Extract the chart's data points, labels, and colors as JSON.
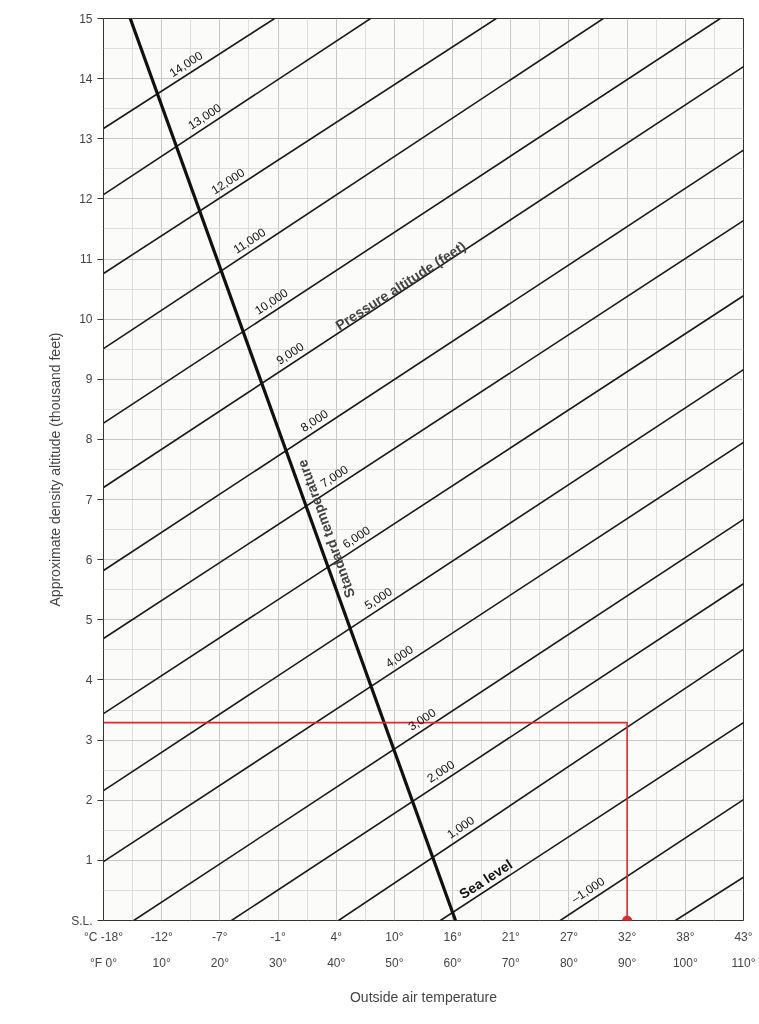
{
  "chart_data": {
    "type": "line",
    "xlabel": "Outside air temperature",
    "ylabel": "Approximate density altitude (thousand feet)",
    "xlim": [
      0,
      110
    ],
    "ylim": [
      0,
      15
    ],
    "xticks": [
      {
        "value": 0,
        "label": "°F 0°"
      },
      {
        "value": 10,
        "label": "10°"
      },
      {
        "value": 20,
        "label": "20°"
      },
      {
        "value": 30,
        "label": "30°"
      },
      {
        "value": 40,
        "label": "40°"
      },
      {
        "value": 50,
        "label": "50°"
      },
      {
        "value": 60,
        "label": "60°"
      },
      {
        "value": 70,
        "label": "70°"
      },
      {
        "value": 80,
        "label": "80°"
      },
      {
        "value": 90,
        "label": "90°"
      },
      {
        "value": 100,
        "label": "100°"
      },
      {
        "value": 110,
        "label": "110°"
      }
    ],
    "x2lim": [
      -17.78,
      43.33
    ],
    "x2ticks": [
      {
        "value": -17.78,
        "label": "°C -18°"
      },
      {
        "value": -12.22,
        "label": "-12°"
      },
      {
        "value": -6.67,
        "label": "-7°"
      },
      {
        "value": -1.11,
        "label": "-1°"
      },
      {
        "value": 4.44,
        "label": "4°"
      },
      {
        "value": 10,
        "label": "10°"
      },
      {
        "value": 15.56,
        "label": "16°"
      },
      {
        "value": 21.11,
        "label": "21°"
      },
      {
        "value": 26.67,
        "label": "27°"
      },
      {
        "value": 32.22,
        "label": "32°"
      },
      {
        "value": 37.78,
        "label": "38°"
      },
      {
        "value": 43.33,
        "label": "43°"
      }
    ],
    "yticks": [
      {
        "value": 0,
        "label": "S.L."
      },
      1,
      2,
      3,
      4,
      5,
      6,
      7,
      8,
      9,
      10,
      11,
      12,
      13,
      14,
      15
    ],
    "grid": true,
    "line_style": "solid",
    "series": [
      {
        "name": "14,000",
        "color": "#1a1a1a",
        "x": [
          0,
          29.4
        ],
        "values": [
          13.17,
          15
        ]
      },
      {
        "name": "13,000",
        "color": "#1a1a1a",
        "x": [
          0,
          45.9
        ],
        "values": [
          12.07,
          15
        ]
      },
      {
        "name": "12,000",
        "color": "#1a1a1a",
        "x": [
          0,
          67.5
        ],
        "values": [
          10.76,
          15
        ]
      },
      {
        "name": "11,000",
        "color": "#1a1a1a",
        "x": [
          0,
          85.9
        ],
        "values": [
          9.51,
          15
        ]
      },
      {
        "name": "10,000",
        "color": "#1a1a1a",
        "x": [
          0,
          106
        ],
        "values": [
          8.27,
          15
        ]
      },
      {
        "name": "9,000",
        "color": "#1a1a1a",
        "x": [
          0,
          110
        ],
        "values": [
          7.2,
          14.2
        ]
      },
      {
        "name": "8,000",
        "color": "#1a1a1a",
        "x": [
          0,
          110
        ],
        "values": [
          5.82,
          12.81
        ]
      },
      {
        "name": "7,000",
        "color": "#1a1a1a",
        "x": [
          0,
          110
        ],
        "values": [
          4.69,
          11.64
        ]
      },
      {
        "name": "6,000",
        "color": "#1a1a1a",
        "x": [
          0,
          110
        ],
        "values": [
          3.44,
          10.39
        ]
      },
      {
        "name": "5,000",
        "color": "#1a1a1a",
        "x": [
          0,
          110
        ],
        "values": [
          2.16,
          9.16
        ]
      },
      {
        "name": "4,000",
        "color": "#1a1a1a",
        "x": [
          0,
          110
        ],
        "values": [
          0.98,
          7.95
        ]
      },
      {
        "name": "3,000",
        "color": "#1a1a1a",
        "x": [
          5.2,
          110
        ],
        "values": [
          0,
          6.67
        ]
      },
      {
        "name": "2,000",
        "color": "#1a1a1a",
        "x": [
          22,
          110
        ],
        "values": [
          0,
          5.6
        ]
      },
      {
        "name": "1,000",
        "color": "#1a1a1a",
        "x": [
          40.4,
          110
        ],
        "values": [
          0,
          4.51
        ]
      },
      {
        "name": "Sea level",
        "color": "#1a1a1a",
        "x": [
          57.9,
          110
        ],
        "values": [
          0,
          3.29
        ]
      },
      {
        "name": "–1,000",
        "color": "#1a1a1a",
        "x": [
          78.5,
          110
        ],
        "values": [
          0,
          2.01
        ]
      },
      {
        "color": "#1a1a1a",
        "x": [
          98.3,
          110
        ],
        "values": [
          0,
          0.72
        ]
      },
      {
        "name": "Standard temperature",
        "color": "#111111",
        "x": [
          4.6,
          60.5
        ],
        "values": [
          15,
          0
        ]
      },
      {
        "color": "#e0282e",
        "x": [
          90,
          90,
          0
        ],
        "values": [
          0,
          3.29,
          3.29
        ]
      },
      {
        "type": "scatter",
        "color": "#e0282e",
        "x": [
          90
        ],
        "values": [
          0
        ]
      }
    ],
    "annotations": [
      "Pressure altitude (feet)"
    ]
  }
}
